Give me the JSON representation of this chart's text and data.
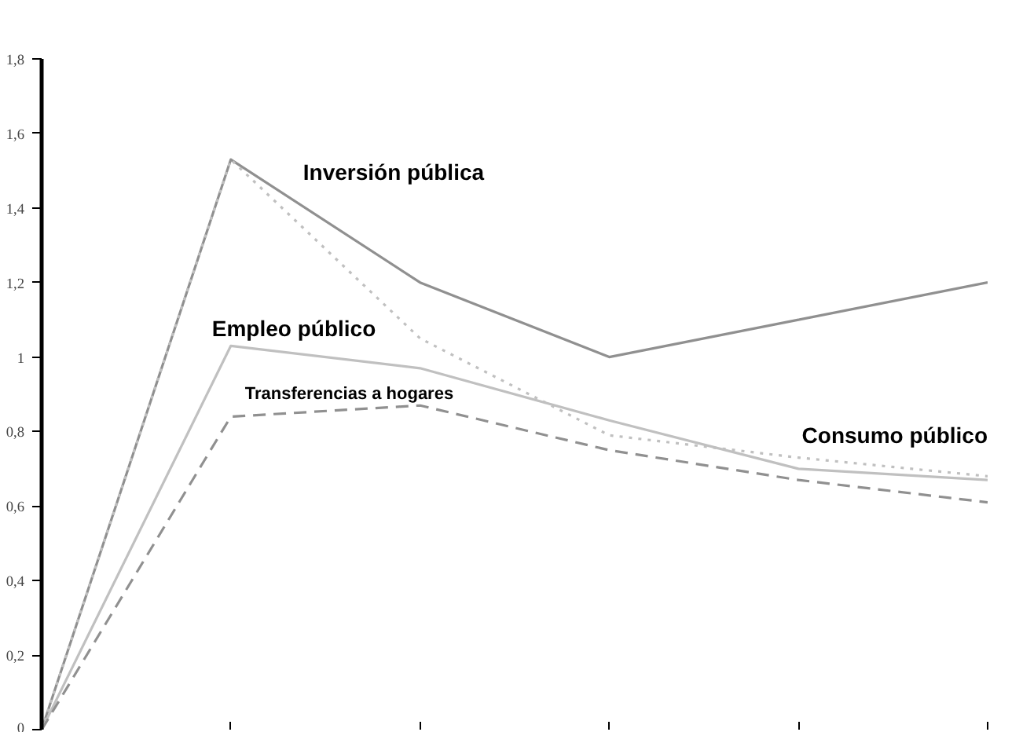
{
  "chart_data": {
    "type": "line",
    "categories": [
      null,
      null,
      null,
      null,
      null,
      null
    ],
    "ylim": [
      0,
      1.8
    ],
    "yticks": [
      0,
      {
        "value": 0.2,
        "label": "0,2"
      },
      {
        "value": 0.4,
        "label": "0,4"
      },
      {
        "value": 0.6,
        "label": "0,6"
      },
      {
        "value": 0.8,
        "label": "0,8"
      },
      1,
      {
        "value": 1.2,
        "label": "1,2"
      },
      {
        "value": 1.4,
        "label": "1,4"
      },
      {
        "value": 1.6,
        "label": "1,6"
      },
      {
        "value": 1.8,
        "label": "1,8"
      }
    ],
    "grid": false,
    "legend": false,
    "marker": "none",
    "series": [
      {
        "name": "Inversión pública",
        "color": "#909090",
        "line_style": "solid",
        "values": [
          0,
          1.53,
          1.2,
          1.0,
          1.1,
          1.2
        ]
      },
      {
        "name": "Empleo público",
        "color": "#c0c0c0",
        "line_style": "solid",
        "values": [
          0,
          1.03,
          0.97,
          0.83,
          0.7,
          0.67
        ]
      },
      {
        "name": "Transferencias a hogares",
        "color": "#909090",
        "line_style": "dashed",
        "values": [
          0,
          0.84,
          0.87,
          0.75,
          0.67,
          0.61
        ]
      },
      {
        "name": "Consumo público",
        "color": "#c0c0c0",
        "line_style": "dotted",
        "values": [
          0,
          1.53,
          1.05,
          0.79,
          0.73,
          0.68
        ]
      }
    ]
  }
}
